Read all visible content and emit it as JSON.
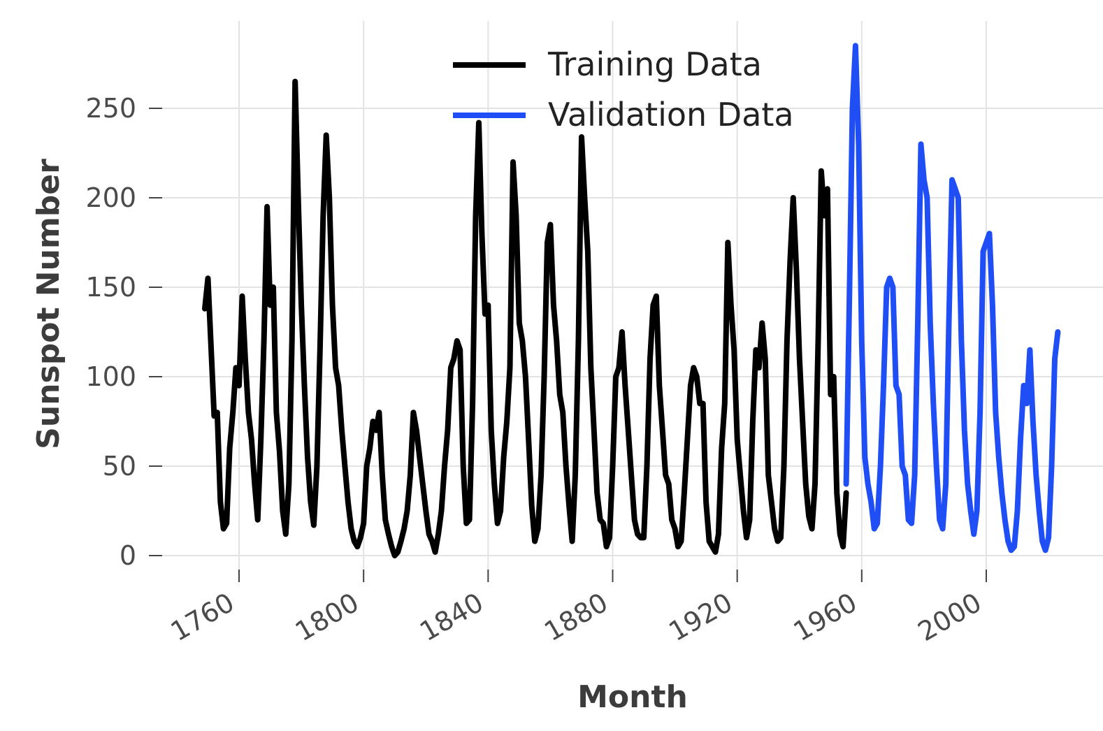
{
  "chart_data": {
    "type": "line",
    "title": "",
    "xlabel": "Month",
    "ylabel": "Sunspot Number",
    "xlim": [
      1730,
      2030
    ],
    "ylim": [
      -15,
      300
    ],
    "x_ticks": [
      1760,
      1800,
      1840,
      1880,
      1920,
      1960,
      2000
    ],
    "x_tick_labels": [
      "1760",
      "1800",
      "1840",
      "1880",
      "1920",
      "1960",
      "2000"
    ],
    "y_ticks": [
      0,
      50,
      100,
      150,
      200,
      250
    ],
    "y_tick_labels": [
      "0",
      "50",
      "100",
      "150",
      "200",
      "250"
    ],
    "grid": true,
    "legend_position": "top-center",
    "series": [
      {
        "name": "Training Data",
        "color": "#000000",
        "points": [
          [
            1749,
            138
          ],
          [
            1750,
            155
          ],
          [
            1752,
            78
          ],
          [
            1753,
            80
          ],
          [
            1754,
            30
          ],
          [
            1755,
            15
          ],
          [
            1756,
            18
          ],
          [
            1757,
            60
          ],
          [
            1758,
            80
          ],
          [
            1759,
            105
          ],
          [
            1760,
            95
          ],
          [
            1761,
            145
          ],
          [
            1762,
            110
          ],
          [
            1763,
            80
          ],
          [
            1764,
            65
          ],
          [
            1765,
            40
          ],
          [
            1766,
            20
          ],
          [
            1767,
            65
          ],
          [
            1768,
            120
          ],
          [
            1769,
            195
          ],
          [
            1770,
            140
          ],
          [
            1771,
            150
          ],
          [
            1772,
            80
          ],
          [
            1773,
            58
          ],
          [
            1774,
            25
          ],
          [
            1775,
            12
          ],
          [
            1776,
            40
          ],
          [
            1777,
            120
          ],
          [
            1778,
            265
          ],
          [
            1779,
            200
          ],
          [
            1780,
            140
          ],
          [
            1781,
            95
          ],
          [
            1782,
            55
          ],
          [
            1783,
            30
          ],
          [
            1784,
            17
          ],
          [
            1785,
            50
          ],
          [
            1786,
            115
          ],
          [
            1787,
            190
          ],
          [
            1788,
            235
          ],
          [
            1789,
            200
          ],
          [
            1790,
            140
          ],
          [
            1791,
            105
          ],
          [
            1792,
            95
          ],
          [
            1793,
            70
          ],
          [
            1794,
            50
          ],
          [
            1795,
            30
          ],
          [
            1796,
            15
          ],
          [
            1797,
            8
          ],
          [
            1798,
            5
          ],
          [
            1799,
            10
          ],
          [
            1800,
            18
          ],
          [
            1801,
            50
          ],
          [
            1802,
            60
          ],
          [
            1803,
            75
          ],
          [
            1804,
            70
          ],
          [
            1805,
            80
          ],
          [
            1806,
            45
          ],
          [
            1807,
            20
          ],
          [
            1808,
            12
          ],
          [
            1809,
            5
          ],
          [
            1810,
            0
          ],
          [
            1811,
            2
          ],
          [
            1812,
            8
          ],
          [
            1813,
            15
          ],
          [
            1814,
            25
          ],
          [
            1815,
            45
          ],
          [
            1816,
            80
          ],
          [
            1817,
            70
          ],
          [
            1818,
            55
          ],
          [
            1819,
            40
          ],
          [
            1820,
            25
          ],
          [
            1821,
            12
          ],
          [
            1822,
            8
          ],
          [
            1823,
            2
          ],
          [
            1824,
            12
          ],
          [
            1825,
            25
          ],
          [
            1826,
            50
          ],
          [
            1827,
            70
          ],
          [
            1828,
            105
          ],
          [
            1829,
            110
          ],
          [
            1830,
            120
          ],
          [
            1831,
            115
          ],
          [
            1832,
            50
          ],
          [
            1833,
            18
          ],
          [
            1834,
            20
          ],
          [
            1835,
            85
          ],
          [
            1836,
            190
          ],
          [
            1837,
            242
          ],
          [
            1838,
            180
          ],
          [
            1839,
            135
          ],
          [
            1840,
            140
          ],
          [
            1841,
            70
          ],
          [
            1842,
            40
          ],
          [
            1843,
            18
          ],
          [
            1844,
            25
          ],
          [
            1845,
            55
          ],
          [
            1846,
            75
          ],
          [
            1847,
            105
          ],
          [
            1848,
            220
          ],
          [
            1849,
            190
          ],
          [
            1850,
            130
          ],
          [
            1851,
            120
          ],
          [
            1852,
            100
          ],
          [
            1853,
            65
          ],
          [
            1854,
            28
          ],
          [
            1855,
            8
          ],
          [
            1856,
            15
          ],
          [
            1857,
            45
          ],
          [
            1858,
            100
          ],
          [
            1859,
            175
          ],
          [
            1860,
            185
          ],
          [
            1861,
            140
          ],
          [
            1862,
            120
          ],
          [
            1863,
            90
          ],
          [
            1864,
            80
          ],
          [
            1865,
            50
          ],
          [
            1866,
            28
          ],
          [
            1867,
            8
          ],
          [
            1868,
            45
          ],
          [
            1869,
            120
          ],
          [
            1870,
            234
          ],
          [
            1871,
            200
          ],
          [
            1872,
            170
          ],
          [
            1873,
            105
          ],
          [
            1874,
            70
          ],
          [
            1875,
            35
          ],
          [
            1876,
            20
          ],
          [
            1877,
            18
          ],
          [
            1878,
            5
          ],
          [
            1879,
            10
          ],
          [
            1880,
            50
          ],
          [
            1881,
            100
          ],
          [
            1882,
            105
          ],
          [
            1883,
            125
          ],
          [
            1884,
            95
          ],
          [
            1885,
            70
          ],
          [
            1886,
            45
          ],
          [
            1887,
            20
          ],
          [
            1888,
            12
          ],
          [
            1889,
            10
          ],
          [
            1890,
            10
          ],
          [
            1891,
            50
          ],
          [
            1892,
            110
          ],
          [
            1893,
            140
          ],
          [
            1894,
            145
          ],
          [
            1895,
            95
          ],
          [
            1896,
            70
          ],
          [
            1897,
            45
          ],
          [
            1898,
            40
          ],
          [
            1899,
            20
          ],
          [
            1900,
            15
          ],
          [
            1901,
            5
          ],
          [
            1902,
            8
          ],
          [
            1903,
            35
          ],
          [
            1904,
            65
          ],
          [
            1905,
            95
          ],
          [
            1906,
            105
          ],
          [
            1907,
            100
          ],
          [
            1908,
            85
          ],
          [
            1909,
            85
          ],
          [
            1910,
            30
          ],
          [
            1911,
            8
          ],
          [
            1912,
            5
          ],
          [
            1913,
            2
          ],
          [
            1914,
            12
          ],
          [
            1915,
            60
          ],
          [
            1916,
            85
          ],
          [
            1917,
            175
          ],
          [
            1918,
            140
          ],
          [
            1919,
            115
          ],
          [
            1920,
            65
          ],
          [
            1921,
            45
          ],
          [
            1922,
            25
          ],
          [
            1923,
            10
          ],
          [
            1924,
            20
          ],
          [
            1925,
            75
          ],
          [
            1926,
            115
          ],
          [
            1927,
            105
          ],
          [
            1928,
            130
          ],
          [
            1929,
            110
          ],
          [
            1930,
            45
          ],
          [
            1931,
            30
          ],
          [
            1932,
            15
          ],
          [
            1933,
            8
          ],
          [
            1934,
            10
          ],
          [
            1935,
            50
          ],
          [
            1936,
            120
          ],
          [
            1937,
            165
          ],
          [
            1938,
            200
          ],
          [
            1939,
            160
          ],
          [
            1940,
            110
          ],
          [
            1941,
            75
          ],
          [
            1942,
            40
          ],
          [
            1943,
            22
          ],
          [
            1944,
            15
          ],
          [
            1945,
            40
          ],
          [
            1946,
            120
          ],
          [
            1947,
            215
          ],
          [
            1948,
            190
          ],
          [
            1949,
            205
          ],
          [
            1950,
            90
          ],
          [
            1951,
            100
          ],
          [
            1952,
            35
          ],
          [
            1953,
            12
          ],
          [
            1954,
            5
          ],
          [
            1955,
            35
          ]
        ]
      },
      {
        "name": "Validation Data",
        "color": "#1f4ef5",
        "points": [
          [
            1955,
            40
          ],
          [
            1956,
            140
          ],
          [
            1957,
            250
          ],
          [
            1958,
            285
          ],
          [
            1959,
            230
          ],
          [
            1960,
            120
          ],
          [
            1961,
            55
          ],
          [
            1962,
            40
          ],
          [
            1963,
            30
          ],
          [
            1964,
            15
          ],
          [
            1965,
            18
          ],
          [
            1966,
            50
          ],
          [
            1967,
            95
          ],
          [
            1968,
            150
          ],
          [
            1969,
            155
          ],
          [
            1970,
            150
          ],
          [
            1971,
            95
          ],
          [
            1972,
            90
          ],
          [
            1973,
            50
          ],
          [
            1974,
            45
          ],
          [
            1975,
            20
          ],
          [
            1976,
            18
          ],
          [
            1977,
            45
          ],
          [
            1978,
            130
          ],
          [
            1979,
            230
          ],
          [
            1980,
            210
          ],
          [
            1981,
            200
          ],
          [
            1982,
            130
          ],
          [
            1983,
            85
          ],
          [
            1984,
            50
          ],
          [
            1985,
            20
          ],
          [
            1986,
            15
          ],
          [
            1987,
            40
          ],
          [
            1988,
            130
          ],
          [
            1989,
            210
          ],
          [
            1990,
            205
          ],
          [
            1991,
            200
          ],
          [
            1992,
            120
          ],
          [
            1993,
            70
          ],
          [
            1994,
            40
          ],
          [
            1995,
            25
          ],
          [
            1996,
            12
          ],
          [
            1997,
            25
          ],
          [
            1998,
            80
          ],
          [
            1999,
            170
          ],
          [
            2000,
            175
          ],
          [
            2001,
            180
          ],
          [
            2002,
            140
          ],
          [
            2003,
            80
          ],
          [
            2004,
            55
          ],
          [
            2005,
            35
          ],
          [
            2006,
            20
          ],
          [
            2007,
            8
          ],
          [
            2008,
            3
          ],
          [
            2009,
            5
          ],
          [
            2010,
            25
          ],
          [
            2011,
            65
          ],
          [
            2012,
            95
          ],
          [
            2013,
            85
          ],
          [
            2014,
            115
          ],
          [
            2015,
            75
          ],
          [
            2016,
            45
          ],
          [
            2017,
            25
          ],
          [
            2018,
            8
          ],
          [
            2019,
            3
          ],
          [
            2020,
            10
          ],
          [
            2021,
            50
          ],
          [
            2022,
            110
          ],
          [
            2023,
            125
          ]
        ]
      }
    ]
  }
}
